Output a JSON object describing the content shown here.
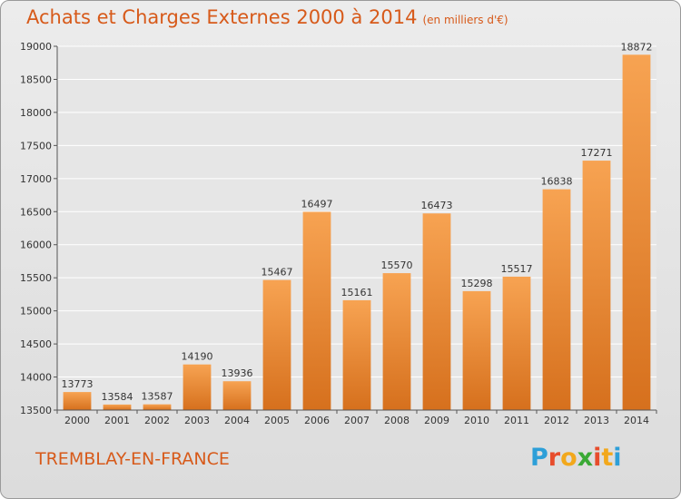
{
  "header": {
    "title": "Achats et Charges Externes 2000 à 2014",
    "subtitle": "(en milliers d'€)"
  },
  "footer": {
    "place": "TREMBLAY-EN-FRANCE",
    "logo_letters": [
      "P",
      "r",
      "o",
      "x",
      "i",
      "t",
      "i"
    ],
    "logo_colors": [
      "#2d9fd8",
      "#e74c2c",
      "#f2a81c",
      "#3aa935",
      "#e74c2c",
      "#f2a81c",
      "#2d9fd8"
    ]
  },
  "chart_data": {
    "type": "bar",
    "title": "Achats et Charges Externes 2000 à 2014",
    "subtitle": "(en milliers d'€)",
    "xlabel": "",
    "ylabel": "",
    "categories": [
      "2000",
      "2001",
      "2002",
      "2003",
      "2004",
      "2005",
      "2006",
      "2007",
      "2008",
      "2009",
      "2010",
      "2011",
      "2012",
      "2013",
      "2014"
    ],
    "values": [
      13773,
      13584,
      13587,
      14190,
      13936,
      15467,
      16497,
      15161,
      15570,
      16473,
      15298,
      15517,
      16838,
      17271,
      18872
    ],
    "ylim": [
      13500,
      19000
    ],
    "yticks": [
      13500,
      14000,
      14500,
      15000,
      15500,
      16000,
      16500,
      17000,
      17500,
      18000,
      18500,
      19000
    ],
    "grid": true,
    "bar_color_top": "#f7a352",
    "bar_color_bottom": "#d6701d"
  }
}
